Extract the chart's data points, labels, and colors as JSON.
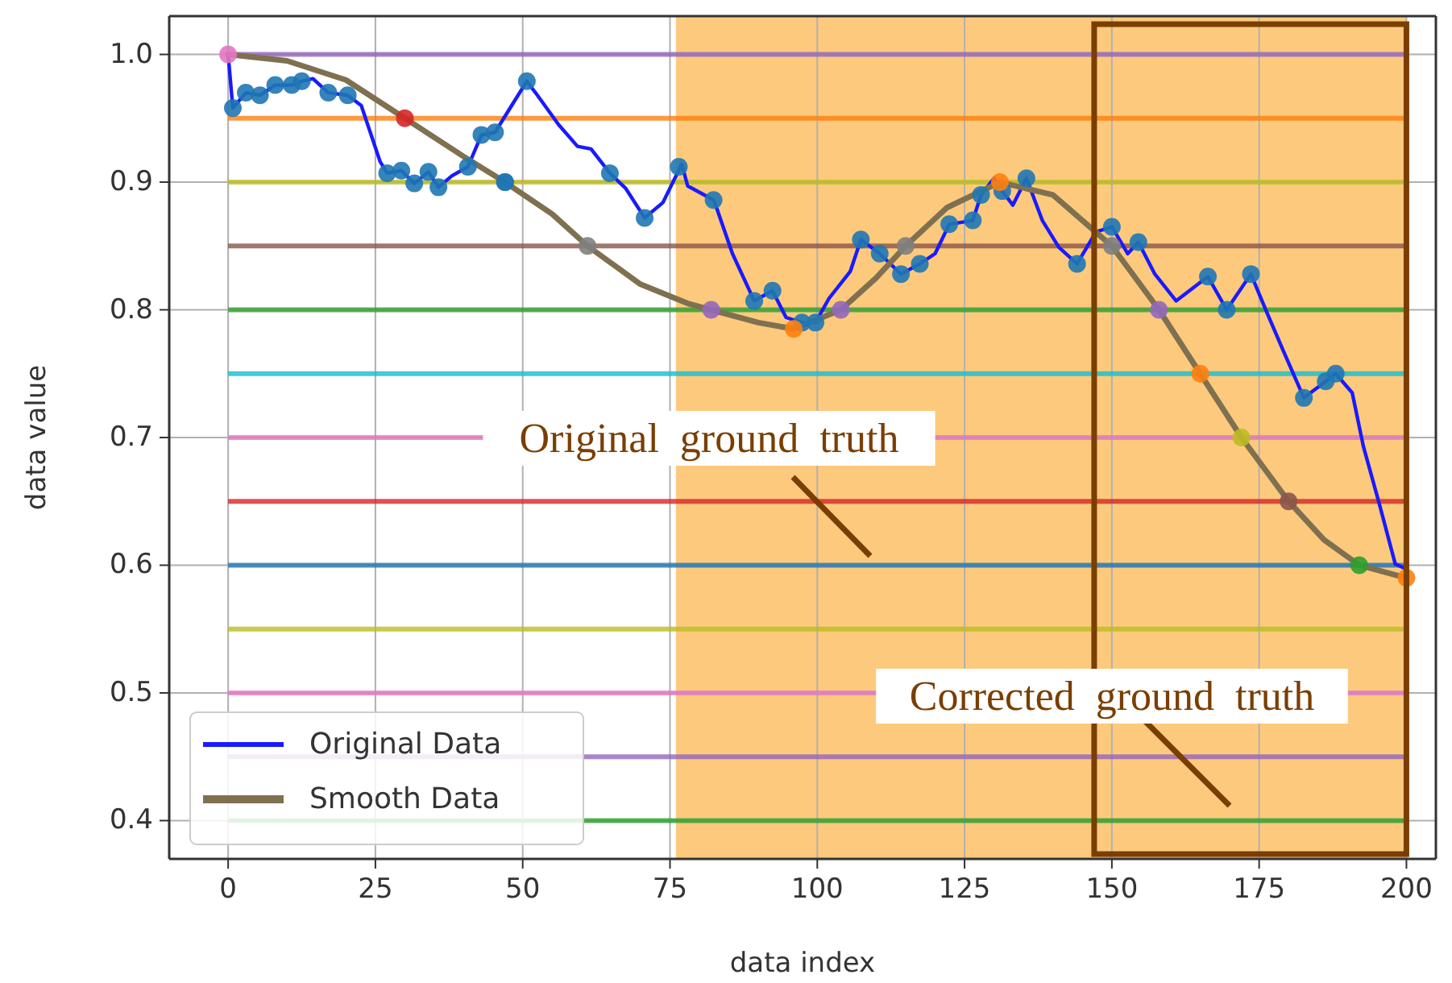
{
  "chart_data": {
    "type": "line",
    "xlabel": "data index",
    "ylabel": "data value",
    "xlim": [
      -10,
      205
    ],
    "ylim": [
      0.37,
      1.03
    ],
    "xticks": [
      0,
      25,
      50,
      75,
      100,
      125,
      150,
      175,
      200
    ],
    "yticks": [
      {
        "value": 0.4,
        "label": "0.4"
      },
      {
        "value": 0.5,
        "label": "0.5"
      },
      {
        "value": 0.6,
        "label": "0.6"
      },
      {
        "value": 0.7,
        "label": "0.7"
      },
      {
        "value": 0.8,
        "label": "0.8"
      },
      {
        "value": 0.9,
        "label": "0.9"
      },
      {
        "value": 1.0,
        "label": "1.0"
      }
    ],
    "grid": true,
    "legend": "bottom left",
    "bands": [
      {
        "axis": "x",
        "from": 76,
        "to": 200,
        "color": "#fdca7d"
      }
    ],
    "ref_lines": [
      {
        "axis": "y",
        "value": 1.0,
        "color": "#9467bd"
      },
      {
        "axis": "y",
        "value": 0.95,
        "color": "#ff7f0e"
      },
      {
        "axis": "y",
        "value": 0.9,
        "color": "#bcbd22"
      },
      {
        "axis": "y",
        "value": 0.85,
        "color": "#8c564b"
      },
      {
        "axis": "y",
        "value": 0.8,
        "color": "#2ca02c"
      },
      {
        "axis": "y",
        "value": 0.75,
        "color": "#17becf"
      },
      {
        "axis": "y",
        "value": 0.7,
        "color": "#e377c2"
      },
      {
        "axis": "y",
        "value": 0.65,
        "color": "#d62728"
      },
      {
        "axis": "y",
        "value": 0.6,
        "color": "#1f77b4"
      },
      {
        "axis": "y",
        "value": 0.55,
        "color": "#bcbd22"
      },
      {
        "axis": "y",
        "value": 0.5,
        "color": "#e377c2"
      },
      {
        "axis": "y",
        "value": 0.45,
        "color": "#9467bd"
      },
      {
        "axis": "y",
        "value": 0.4,
        "color": "#2ca02c"
      }
    ],
    "annotations": [
      "Original  ground  truth",
      "Corrected  ground  truth"
    ],
    "series": [
      {
        "name": "Original Data",
        "color": "#1a1aff",
        "x": [
          0,
          0.8,
          3,
          5.4,
          8,
          10.8,
          12.5,
          14.4,
          17,
          20.3,
          22.6,
          25.8,
          27,
          29.4,
          31.6,
          34,
          35.7,
          38,
          40.7,
          43,
          45.3,
          48.4,
          50.7,
          52.5,
          56.1,
          59.3,
          61.6,
          64.8,
          67.5,
          70.7,
          73.8,
          77,
          78,
          82.4,
          82.9,
          85.6,
          89.3,
          92.4,
          94.7,
          97.4,
          99.7,
          102,
          105.6,
          107.4,
          110.6,
          114.2,
          117.4,
          120,
          122.4,
          126.4,
          127.8,
          130,
          131.4,
          133.2,
          135.5,
          138.2,
          141,
          144.1,
          147.3,
          150,
          152.7,
          154.5,
          157.3,
          160.9,
          166.3,
          169.5,
          173.6,
          176.3,
          179,
          182.6,
          186.3,
          188,
          190.8,
          192.7,
          195.4,
          198.1,
          200
        ],
        "values": [
          1.0,
          0.958,
          0.97,
          0.968,
          0.976,
          0.976,
          0.979,
          0.981,
          0.97,
          0.968,
          0.96,
          0.916,
          0.907,
          0.909,
          0.899,
          0.908,
          0.896,
          0.905,
          0.912,
          0.937,
          0.939,
          0.962,
          0.979,
          0.968,
          0.945,
          0.928,
          0.926,
          0.907,
          0.895,
          0.872,
          0.884,
          0.914,
          0.897,
          0.886,
          0.88,
          0.844,
          0.807,
          0.815,
          0.794,
          0.79,
          0.79,
          0.809,
          0.83,
          0.855,
          0.844,
          0.828,
          0.836,
          0.844,
          0.867,
          0.87,
          0.89,
          0.903,
          0.893,
          0.882,
          0.903,
          0.87,
          0.849,
          0.836,
          0.861,
          0.865,
          0.844,
          0.853,
          0.828,
          0.807,
          0.826,
          0.8,
          0.828,
          0.798,
          0.769,
          0.731,
          0.744,
          0.75,
          0.735,
          0.693,
          0.648,
          0.601,
          0.597
        ]
      },
      {
        "name": "Smooth Data",
        "color": "#7f7050",
        "x": [
          0,
          10,
          20,
          30,
          40,
          47,
          55,
          61,
          70,
          78,
          82,
          90,
          96,
          104,
          110,
          115,
          122,
          131,
          140,
          150,
          158,
          165,
          172,
          180,
          186,
          192,
          200
        ],
        "values": [
          1.0,
          0.995,
          0.98,
          0.95,
          0.92,
          0.9,
          0.875,
          0.85,
          0.82,
          0.805,
          0.8,
          0.79,
          0.785,
          0.8,
          0.825,
          0.85,
          0.88,
          0.9,
          0.89,
          0.85,
          0.8,
          0.75,
          0.7,
          0.65,
          0.62,
          0.6,
          0.59
        ]
      },
      {
        "type": "scatter",
        "color": "#1f77b4",
        "x": [
          0.8,
          3,
          5.4,
          8,
          10.8,
          12.5,
          17,
          20.3,
          27,
          29.4,
          31.6,
          34,
          35.7,
          40.7,
          43,
          45.3,
          47,
          50.7,
          64.8,
          70.7,
          76.5,
          82.4,
          89.3,
          92.4,
          97.4,
          99.7,
          107.4,
          110.6,
          114.2,
          117.4,
          122.4,
          126.4,
          127.8,
          131.4,
          135.5,
          144.1,
          150,
          154.5,
          166.3,
          169.5,
          173.6,
          182.6,
          186.3,
          188
        ],
        "values": [
          0.958,
          0.97,
          0.968,
          0.976,
          0.976,
          0.979,
          0.97,
          0.968,
          0.907,
          0.909,
          0.899,
          0.908,
          0.896,
          0.912,
          0.937,
          0.939,
          0.9,
          0.979,
          0.907,
          0.872,
          0.912,
          0.886,
          0.807,
          0.815,
          0.79,
          0.79,
          0.855,
          0.844,
          0.828,
          0.836,
          0.867,
          0.87,
          0.89,
          0.893,
          0.903,
          0.836,
          0.865,
          0.853,
          0.826,
          0.8,
          0.828,
          0.731,
          0.744,
          0.75
        ]
      },
      {
        "type": "scatter",
        "colors": [
          "#e377c2",
          "#d62728",
          "#1f77b4",
          "#7f7f7f",
          "#9467bd",
          "#ff7f0e",
          "#9467bd",
          "#7f7f7f",
          "#ff7f0e",
          "#7f7f7f",
          "#9467bd",
          "#ff7f0e",
          "#bcbd22",
          "#8c564b",
          "#2ca02c",
          "#ff7f0e"
        ],
        "x": [
          0,
          30,
          47,
          61,
          82,
          96,
          104,
          115,
          131,
          150,
          158,
          165,
          172,
          180,
          192,
          200
        ],
        "values": [
          1.0,
          0.95,
          0.9,
          0.85,
          0.8,
          0.785,
          0.8,
          0.85,
          0.9,
          0.85,
          0.8,
          0.75,
          0.7,
          0.65,
          0.6,
          0.59
        ]
      }
    ]
  }
}
